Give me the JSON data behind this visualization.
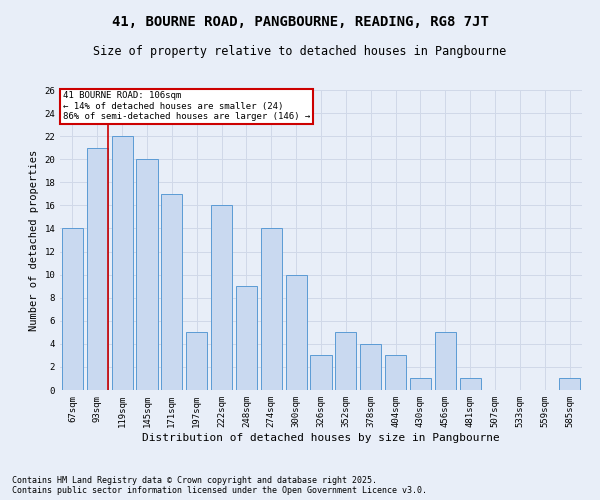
{
  "title1": "41, BOURNE ROAD, PANGBOURNE, READING, RG8 7JT",
  "title2": "Size of property relative to detached houses in Pangbourne",
  "xlabel": "Distribution of detached houses by size in Pangbourne",
  "ylabel": "Number of detached properties",
  "categories": [
    "67sqm",
    "93sqm",
    "119sqm",
    "145sqm",
    "171sqm",
    "197sqm",
    "222sqm",
    "248sqm",
    "274sqm",
    "300sqm",
    "326sqm",
    "352sqm",
    "378sqm",
    "404sqm",
    "430sqm",
    "456sqm",
    "481sqm",
    "507sqm",
    "533sqm",
    "559sqm",
    "585sqm"
  ],
  "values": [
    14,
    21,
    22,
    20,
    17,
    5,
    16,
    9,
    14,
    10,
    3,
    5,
    4,
    3,
    1,
    5,
    1,
    0,
    0,
    0,
    1
  ],
  "bar_color": "#c9d9f0",
  "bar_edge_color": "#5b9bd5",
  "annotation_line_x_category": "93sqm",
  "annotation_box_text": "41 BOURNE ROAD: 106sqm\n← 14% of detached houses are smaller (24)\n86% of semi-detached houses are larger (146) →",
  "annotation_box_color": "#ffffff",
  "annotation_box_edge_color": "#cc0000",
  "annotation_line_color": "#cc0000",
  "ylim": [
    0,
    26
  ],
  "yticks": [
    0,
    2,
    4,
    6,
    8,
    10,
    12,
    14,
    16,
    18,
    20,
    22,
    24,
    26
  ],
  "grid_color": "#d0d8e8",
  "background_color": "#e8eef8",
  "footer_text": "Contains HM Land Registry data © Crown copyright and database right 2025.\nContains public sector information licensed under the Open Government Licence v3.0.",
  "title1_fontsize": 10,
  "title2_fontsize": 8.5,
  "xlabel_fontsize": 8,
  "ylabel_fontsize": 7.5,
  "tick_fontsize": 6.5,
  "footer_fontsize": 6
}
